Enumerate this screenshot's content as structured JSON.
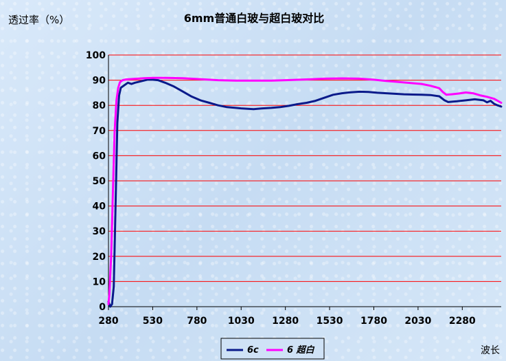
{
  "chart_data": {
    "type": "line",
    "title": "6mm普通白玻与超白玻对比",
    "ylabel": "透过率（%）",
    "xlabel": "波长",
    "xlim": [
      280,
      2500
    ],
    "ylim": [
      0,
      100
    ],
    "x_ticks": [
      280,
      530,
      780,
      1030,
      1280,
      1530,
      1780,
      2030,
      2280
    ],
    "y_ticks": [
      0,
      10,
      20,
      30,
      40,
      50,
      60,
      70,
      80,
      90,
      100
    ],
    "grid": "horizontal",
    "legend_position": "bottom",
    "colors": {
      "grid": "#ff0000",
      "axis": "#000000"
    },
    "series": [
      {
        "name": "6c",
        "color": "#0a1a8a",
        "points": [
          [
            280,
            2
          ],
          [
            290,
            0
          ],
          [
            300,
            1
          ],
          [
            310,
            8
          ],
          [
            320,
            40
          ],
          [
            330,
            73
          ],
          [
            340,
            84
          ],
          [
            350,
            87
          ],
          [
            370,
            88
          ],
          [
            390,
            89
          ],
          [
            410,
            88.5
          ],
          [
            430,
            89
          ],
          [
            460,
            89.5
          ],
          [
            500,
            90.2
          ],
          [
            530,
            90.2
          ],
          [
            560,
            90
          ],
          [
            600,
            89
          ],
          [
            650,
            87.5
          ],
          [
            700,
            85.5
          ],
          [
            750,
            83.5
          ],
          [
            800,
            82
          ],
          [
            850,
            81
          ],
          [
            900,
            80
          ],
          [
            950,
            79.3
          ],
          [
            1000,
            79
          ],
          [
            1030,
            78.8
          ],
          [
            1100,
            78.5
          ],
          [
            1150,
            78.8
          ],
          [
            1200,
            79
          ],
          [
            1250,
            79.3
          ],
          [
            1300,
            79.8
          ],
          [
            1350,
            80.5
          ],
          [
            1400,
            81
          ],
          [
            1450,
            81.8
          ],
          [
            1500,
            83
          ],
          [
            1550,
            84.2
          ],
          [
            1600,
            84.8
          ],
          [
            1650,
            85.2
          ],
          [
            1700,
            85.4
          ],
          [
            1750,
            85.3
          ],
          [
            1800,
            85
          ],
          [
            1850,
            84.8
          ],
          [
            1900,
            84.6
          ],
          [
            1950,
            84.4
          ],
          [
            2000,
            84.3
          ],
          [
            2050,
            84.2
          ],
          [
            2100,
            84.1
          ],
          [
            2150,
            83.6
          ],
          [
            2180,
            82
          ],
          [
            2200,
            81.3
          ],
          [
            2250,
            81.6
          ],
          [
            2300,
            82
          ],
          [
            2350,
            82.4
          ],
          [
            2400,
            82
          ],
          [
            2420,
            81.2
          ],
          [
            2440,
            81.8
          ],
          [
            2460,
            80.6
          ],
          [
            2480,
            80
          ],
          [
            2500,
            79.5
          ]
        ]
      },
      {
        "name": "6 超白",
        "color": "#ff00ff",
        "points": [
          [
            280,
            1
          ],
          [
            285,
            5
          ],
          [
            295,
            20
          ],
          [
            305,
            45
          ],
          [
            315,
            70
          ],
          [
            325,
            82
          ],
          [
            335,
            87
          ],
          [
            345,
            89.2
          ],
          [
            360,
            90
          ],
          [
            380,
            90.3
          ],
          [
            420,
            90.5
          ],
          [
            480,
            90.8
          ],
          [
            530,
            90.9
          ],
          [
            600,
            90.9
          ],
          [
            700,
            90.8
          ],
          [
            800,
            90.4
          ],
          [
            900,
            90
          ],
          [
            1000,
            89.8
          ],
          [
            1030,
            89.8
          ],
          [
            1100,
            89.8
          ],
          [
            1200,
            89.8
          ],
          [
            1280,
            90
          ],
          [
            1400,
            90.3
          ],
          [
            1500,
            90.6
          ],
          [
            1600,
            90.7
          ],
          [
            1700,
            90.6
          ],
          [
            1780,
            90.2
          ],
          [
            1850,
            89.7
          ],
          [
            1900,
            89.4
          ],
          [
            1950,
            89.1
          ],
          [
            2000,
            88.8
          ],
          [
            2050,
            88.5
          ],
          [
            2100,
            87.8
          ],
          [
            2150,
            86.8
          ],
          [
            2170,
            85.3
          ],
          [
            2190,
            84.2
          ],
          [
            2220,
            84.4
          ],
          [
            2260,
            84.7
          ],
          [
            2300,
            85.1
          ],
          [
            2340,
            84.8
          ],
          [
            2380,
            84
          ],
          [
            2420,
            83.4
          ],
          [
            2460,
            82.6
          ],
          [
            2500,
            81
          ]
        ]
      }
    ]
  }
}
